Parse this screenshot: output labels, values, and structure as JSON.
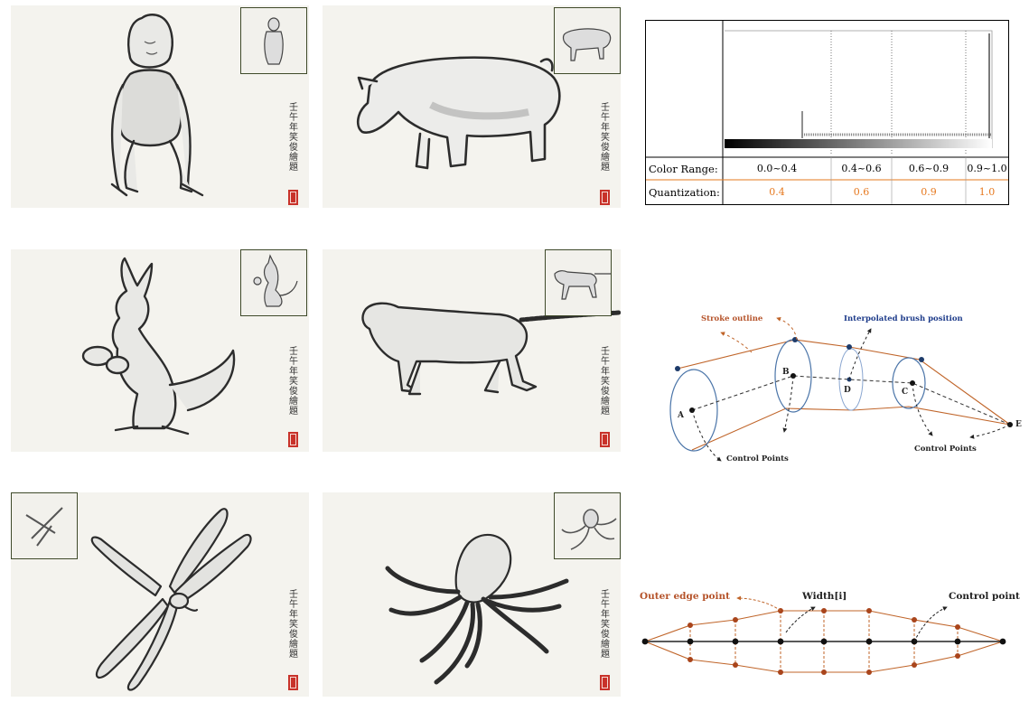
{
  "signature": "壬午年　笑俊繪題",
  "panels": [
    {
      "id": "monkey"
    },
    {
      "id": "pig"
    },
    {
      "id": "kangaroo"
    },
    {
      "id": "dog"
    },
    {
      "id": "dragonfly"
    },
    {
      "id": "octopus"
    }
  ],
  "color_table": {
    "row1_label": "Color Range:",
    "row2_label": "Quantization:",
    "ranges": [
      "0.0~0.4",
      "0.4~0.6",
      "0.6~0.9",
      "0.9~1.0"
    ],
    "quantization": [
      "0.4",
      "0.6",
      "0.9",
      "1.0"
    ],
    "quant_color": "#e6781e"
  },
  "stroke_diagram": {
    "stroke_outline": "Stroke outline",
    "interpolated": "Interpolated brush position",
    "control_points_left": "Control Points",
    "control_points_right": "Control Points",
    "points": [
      "A",
      "B",
      "C",
      "D",
      "E"
    ],
    "outline_color": "#c0652a",
    "ellipse_color": "#4a74a8",
    "interp_label_color": "#1d3b8a"
  },
  "width_diagram": {
    "outer_edge": "Outer edge point",
    "width": "Width[i]",
    "control_point": "Control point",
    "edge_color": "#c0652a"
  }
}
